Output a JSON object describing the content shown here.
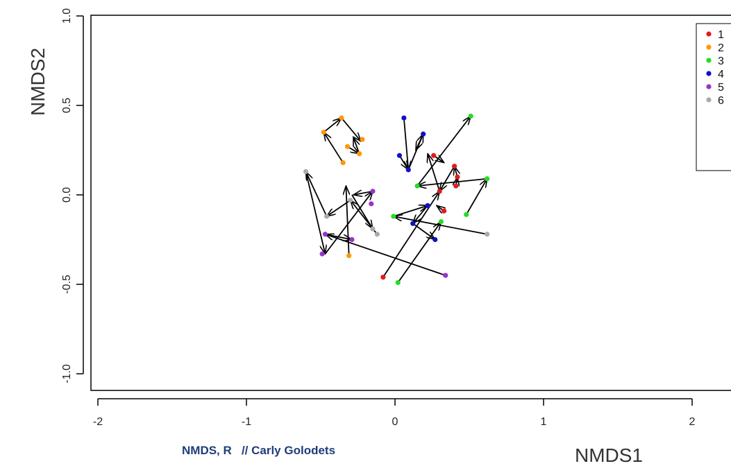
{
  "chart_data": {
    "type": "scatter",
    "xlabel": "NMDS1",
    "ylabel": "NMDS2",
    "xlim": [
      -2,
      2
    ],
    "ylim": [
      -1,
      1
    ],
    "xticks": [
      -2,
      -1,
      0,
      1,
      2
    ],
    "yticks": [
      -1.0,
      -0.5,
      0.0,
      0.5,
      1.0
    ],
    "xtick_labels": [
      "-2",
      "-1",
      "0",
      "1",
      "2"
    ],
    "ytick_labels": [
      "-1.0",
      "-0.5",
      "0.0",
      "0.5",
      "1.0"
    ],
    "grid": false,
    "legend_position": "top-right",
    "series": [
      {
        "name": "1",
        "color": "#e41a1c",
        "points": [
          [
            -0.08,
            -0.46
          ],
          [
            0.26,
            0.22
          ],
          [
            0.3,
            0.02
          ],
          [
            0.33,
            -0.09
          ],
          [
            0.4,
            0.16
          ],
          [
            0.42,
            0.1
          ],
          [
            0.41,
            0.05
          ]
        ]
      },
      {
        "name": "2",
        "color": "#ff9900",
        "points": [
          [
            -0.36,
            0.43
          ],
          [
            -0.48,
            0.35
          ],
          [
            -0.32,
            0.27
          ],
          [
            -0.22,
            0.31
          ],
          [
            -0.24,
            0.23
          ],
          [
            -0.35,
            0.18
          ],
          [
            -0.31,
            -0.34
          ]
        ]
      },
      {
        "name": "3",
        "color": "#22dd22",
        "points": [
          [
            0.02,
            -0.49
          ],
          [
            0.51,
            0.44
          ],
          [
            0.62,
            0.09
          ],
          [
            0.48,
            -0.11
          ],
          [
            0.31,
            -0.15
          ],
          [
            -0.01,
            -0.12
          ],
          [
            0.15,
            0.05
          ]
        ]
      },
      {
        "name": "4",
        "color": "#1010cc",
        "points": [
          [
            0.06,
            0.43
          ],
          [
            0.19,
            0.34
          ],
          [
            0.03,
            0.22
          ],
          [
            0.09,
            0.14
          ],
          [
            0.22,
            -0.06
          ],
          [
            0.12,
            -0.16
          ],
          [
            0.27,
            -0.25
          ]
        ]
      },
      {
        "name": "5",
        "color": "#9933cc",
        "points": [
          [
            -0.47,
            -0.22
          ],
          [
            -0.49,
            -0.33
          ],
          [
            -0.29,
            -0.25
          ],
          [
            -0.15,
            0.02
          ],
          [
            -0.16,
            -0.05
          ],
          [
            0.34,
            -0.45
          ]
        ]
      },
      {
        "name": "6",
        "color": "#aaaaaa",
        "points": [
          [
            -0.6,
            0.13
          ],
          [
            -0.46,
            -0.12
          ],
          [
            -0.3,
            -0.03
          ],
          [
            -0.15,
            -0.19
          ],
          [
            -0.12,
            -0.22
          ],
          [
            0.62,
            -0.22
          ]
        ]
      }
    ],
    "arrows": [
      [
        -0.31,
        -0.34,
        -0.33,
        0.05
      ],
      [
        -0.35,
        0.18,
        -0.48,
        0.35
      ],
      [
        -0.48,
        0.35,
        -0.36,
        0.43
      ],
      [
        -0.36,
        0.43,
        -0.23,
        0.3
      ],
      [
        -0.32,
        0.27,
        -0.24,
        0.23
      ],
      [
        -0.24,
        0.23,
        -0.28,
        0.32
      ],
      [
        -0.12,
        -0.22,
        -0.3,
        -0.03
      ],
      [
        -0.3,
        -0.03,
        -0.46,
        -0.12
      ],
      [
        -0.46,
        -0.12,
        -0.6,
        0.13
      ],
      [
        -0.6,
        0.13,
        -0.47,
        -0.33
      ],
      [
        -0.47,
        -0.33,
        -0.15,
        0.02
      ],
      [
        -0.15,
        0.02,
        -0.28,
        0.0
      ],
      [
        -0.29,
        0.0,
        -0.15,
        -0.19
      ],
      [
        0.34,
        -0.45,
        -0.47,
        -0.22
      ],
      [
        -0.47,
        -0.22,
        -0.29,
        -0.25
      ],
      [
        0.62,
        -0.22,
        -0.01,
        -0.12
      ],
      [
        -0.01,
        -0.12,
        0.22,
        -0.06
      ],
      [
        0.22,
        -0.06,
        0.12,
        -0.16
      ],
      [
        0.12,
        -0.16,
        0.27,
        -0.25
      ],
      [
        0.02,
        -0.49,
        0.31,
        -0.15
      ],
      [
        -0.08,
        -0.46,
        0.3,
        0.02
      ],
      [
        0.48,
        -0.11,
        0.62,
        0.09
      ],
      [
        0.62,
        0.09,
        0.15,
        0.05
      ],
      [
        0.15,
        0.05,
        0.51,
        0.44
      ],
      [
        0.03,
        0.22,
        0.09,
        0.14
      ],
      [
        0.06,
        0.43,
        0.09,
        0.14
      ],
      [
        0.09,
        0.14,
        0.19,
        0.34
      ],
      [
        0.19,
        0.34,
        0.14,
        0.25
      ],
      [
        0.41,
        0.05,
        0.42,
        0.1
      ],
      [
        0.42,
        0.1,
        0.4,
        0.16
      ],
      [
        0.4,
        0.16,
        0.3,
        0.02
      ],
      [
        0.26,
        0.22,
        0.33,
        0.18
      ],
      [
        0.3,
        0.02,
        0.22,
        0.23
      ],
      [
        0.33,
        -0.09,
        0.28,
        -0.06
      ]
    ]
  },
  "caption": "NMDS, R   // Carly Golodets"
}
